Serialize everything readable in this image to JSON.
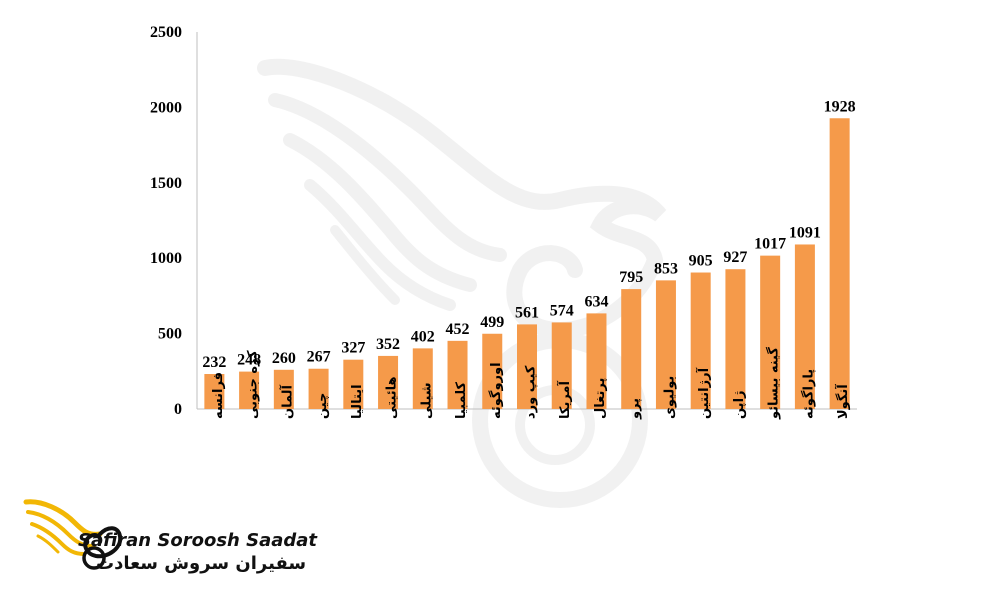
{
  "chart_data": {
    "type": "bar",
    "categories": [
      "فرانسه",
      "کره جنوبی",
      "آلمان",
      "چین",
      "ایتالیا",
      "هائیتی",
      "شیلی",
      "کلمبیا",
      "اوروگوئه",
      "کیپ ورد",
      "آمریکا",
      "پرتغال",
      "پرو",
      "بولیوی",
      "آرژانتین",
      "ژاپن",
      "گینه بیسائو",
      "پاراگوئه",
      "آنگولا"
    ],
    "values": [
      232,
      248,
      260,
      267,
      327,
      352,
      402,
      452,
      499,
      561,
      574,
      634,
      795,
      853,
      905,
      927,
      1017,
      1091,
      1928
    ],
    "ylim": [
      0,
      2500
    ],
    "yticks": [
      0,
      500,
      1000,
      1500,
      2000,
      2500
    ],
    "grid": false,
    "bar_color": "#F59A4A",
    "axis_color": "#BFBFBF"
  },
  "logo": {
    "name_en": "Safiran Soroosh Saadat",
    "name_fa": "سفیران سروش سعادت",
    "icon": "wing-swirl-logo-icon",
    "icon_color": "#F2B705"
  },
  "watermark": {
    "icon": "wing-swirl-watermark-icon",
    "color": "#EDEDED"
  }
}
